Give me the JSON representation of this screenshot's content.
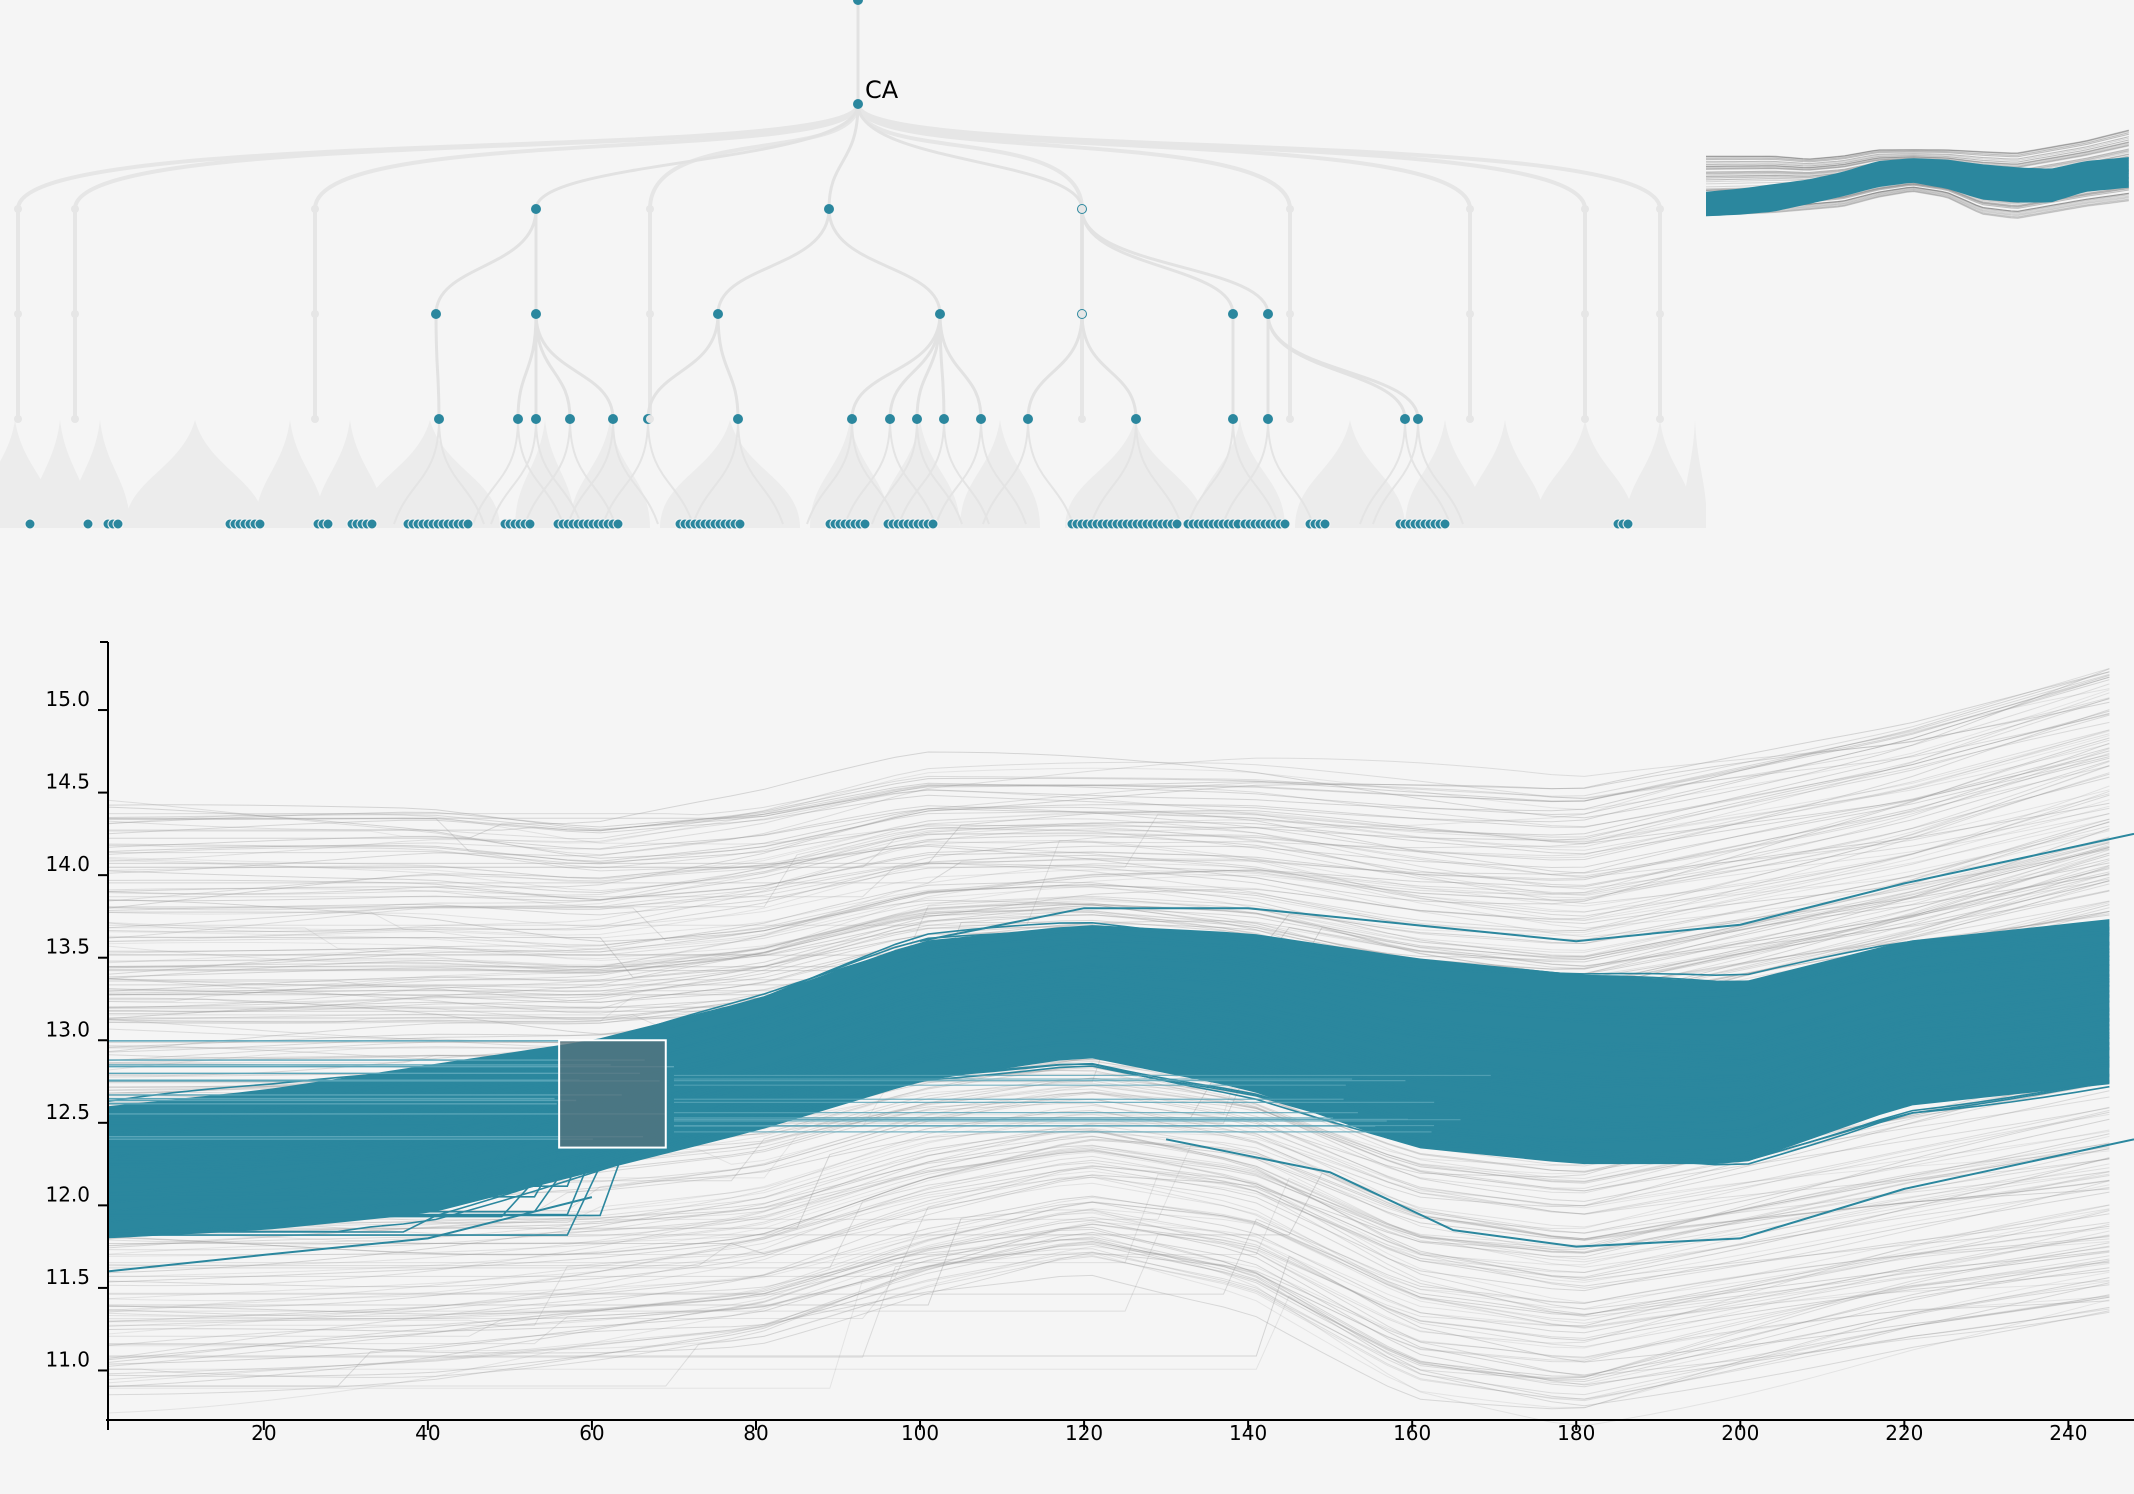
{
  "colors": {
    "background": "#f5f5f5",
    "highlight": "#2b879e",
    "context_line": "#999999",
    "tree_branch": "#e6e6e6",
    "axis": "#000000",
    "brush_fill": "#56707a",
    "brush_stroke": "#ffffff"
  },
  "tree": {
    "root_label": "CA",
    "levels": [
      {
        "depth": 0,
        "nodes": [
          {
            "x": 858
          }
        ]
      },
      {
        "depth": 1,
        "nodes": [
          {
            "x": 858
          }
        ]
      },
      {
        "depth": 2,
        "nodes": [
          {
            "x": 536
          },
          {
            "x": 829
          },
          {
            "x": 1082
          }
        ]
      },
      {
        "depth": 3,
        "nodes": [
          {
            "x": 436
          },
          {
            "x": 536
          },
          {
            "x": 718
          },
          {
            "x": 940
          },
          {
            "x": 1082
          },
          {
            "x": 1233
          },
          {
            "x": 1268
          }
        ]
      },
      {
        "depth": 4,
        "nodes": [
          {
            "x": 439
          },
          {
            "x": 518
          },
          {
            "x": 536
          },
          {
            "x": 570
          },
          {
            "x": 613
          },
          {
            "x": 648
          },
          {
            "x": 738
          },
          {
            "x": 852
          },
          {
            "x": 890
          },
          {
            "x": 917
          },
          {
            "x": 944
          },
          {
            "x": 981
          },
          {
            "x": 1028
          },
          {
            "x": 1136
          },
          {
            "x": 1233
          },
          {
            "x": 1268
          },
          {
            "x": 1405
          },
          {
            "x": 1418
          }
        ]
      }
    ]
  },
  "minimap": {
    "description_colors": [
      "#2b879e",
      "#555555"
    ]
  },
  "chart_data": {
    "type": "line",
    "title": "",
    "xlabel": "",
    "ylabel": "",
    "xlim": [
      1,
      248
    ],
    "ylim": [
      10.7,
      15.4
    ],
    "x_ticks": [
      20,
      40,
      60,
      80,
      100,
      120,
      140,
      160,
      180,
      200,
      220,
      240
    ],
    "y_ticks": [
      "11.0",
      "11.5",
      "12.0",
      "12.5",
      "13.0",
      "13.5",
      "14.0",
      "14.5",
      "15.0"
    ],
    "highlight_band": {
      "x": [
        1,
        20,
        40,
        60,
        80,
        100,
        120,
        140,
        160,
        180,
        200,
        220,
        248
      ],
      "upper": [
        12.6,
        12.7,
        12.85,
        13.0,
        13.25,
        13.6,
        13.7,
        13.65,
        13.5,
        13.4,
        13.35,
        13.6,
        13.75
      ],
      "lower": [
        11.8,
        11.85,
        11.95,
        12.2,
        12.45,
        12.75,
        12.9,
        12.7,
        12.35,
        12.25,
        12.25,
        12.6,
        12.75
      ]
    },
    "highlight_outliers": [
      {
        "x": [
          100,
          120,
          140,
          160,
          180,
          200,
          220,
          248
        ],
        "y": [
          13.6,
          13.8,
          13.8,
          13.7,
          13.6,
          13.7,
          13.95,
          14.25
        ]
      },
      {
        "x": [
          130,
          150,
          165,
          180,
          200,
          220,
          248
        ],
        "y": [
          12.4,
          12.2,
          11.85,
          11.75,
          11.8,
          12.1,
          12.4
        ]
      },
      {
        "x": [
          1,
          20,
          40,
          60
        ],
        "y": [
          11.6,
          11.7,
          11.8,
          12.05
        ]
      }
    ],
    "context_band": {
      "x": [
        1,
        40,
        60,
        80,
        100,
        120,
        140,
        160,
        180,
        200,
        220,
        248
      ],
      "upper": [
        14.4,
        14.4,
        14.3,
        14.4,
        14.6,
        14.6,
        14.6,
        14.55,
        14.5,
        14.7,
        14.9,
        15.3
      ],
      "lower": [
        10.9,
        11.0,
        11.1,
        11.2,
        11.5,
        11.7,
        11.5,
        10.95,
        10.8,
        11.0,
        11.2,
        11.4
      ]
    },
    "brush": {
      "x": [
        56,
        69
      ],
      "y": [
        12.35,
        13.0
      ]
    },
    "grid": false,
    "legend": "none"
  }
}
